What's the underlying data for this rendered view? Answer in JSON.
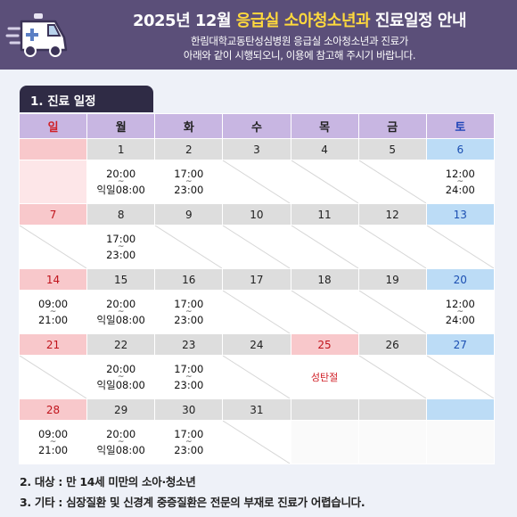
{
  "header": {
    "title_pre": "2025년 12월 ",
    "title_highlight": "응급실 소아청소년과",
    "title_post": " 진료일정 안내",
    "subtitle_line1": "한림대학교동탄성심병원 응급실 소아청소년과 진료가",
    "subtitle_line2": "아래와 같이 시행되오니, 이용에 참고해 주시기 바랍니다."
  },
  "section": {
    "title": "1. 진료 일정"
  },
  "weekdays": [
    "일",
    "월",
    "화",
    "수",
    "목",
    "금",
    "토"
  ],
  "calendar": [
    {
      "days": [
        "",
        "1",
        "2",
        "3",
        "4",
        "5",
        "6"
      ],
      "cells": [
        null,
        [
          "20:00",
          "익일08:00"
        ],
        [
          "17:00",
          "23:00"
        ],
        null,
        null,
        null,
        [
          "12:00",
          "24:00"
        ]
      ]
    },
    {
      "days": [
        "7",
        "8",
        "9",
        "10",
        "11",
        "12",
        "13"
      ],
      "cells": [
        null,
        [
          "17:00",
          "23:00"
        ],
        null,
        null,
        null,
        null,
        null
      ]
    },
    {
      "days": [
        "14",
        "15",
        "16",
        "17",
        "18",
        "19",
        "20"
      ],
      "cells": [
        [
          "09:00",
          "21:00"
        ],
        [
          "20:00",
          "익일08:00"
        ],
        [
          "17:00",
          "23:00"
        ],
        null,
        null,
        null,
        [
          "12:00",
          "24:00"
        ]
      ]
    },
    {
      "days": [
        "21",
        "22",
        "23",
        "24",
        "25",
        "26",
        "27"
      ],
      "cells": [
        null,
        [
          "20:00",
          "익일08:00"
        ],
        [
          "17:00",
          "23:00"
        ],
        null,
        "성탄절",
        null,
        null
      ]
    },
    {
      "days": [
        "28",
        "29",
        "30",
        "31",
        "",
        "",
        ""
      ],
      "cells": [
        [
          "09:00",
          "21:00"
        ],
        [
          "20:00",
          "익일08:00"
        ],
        [
          "17:00",
          "23:00"
        ],
        null,
        null,
        null,
        null
      ]
    }
  ],
  "tilde": "~",
  "notes": {
    "target": "2. 대상 : 만 14세 미만의 소아·청소년",
    "other": "3. 기타 : 심장질환 및 신경계 중증질환은 전문의 부재로 진료가 어렵습니다."
  },
  "colors": {
    "header_bg": "#5b4f79",
    "title_highlight": "#ffd93d",
    "weekday_bg": "#c8b6e2",
    "sunday_bg": "#f8c8cb",
    "saturday_bg": "#bcdcf6",
    "holiday_text": "#d02027"
  },
  "icons": {
    "header_icon": "ambulance-icon"
  }
}
